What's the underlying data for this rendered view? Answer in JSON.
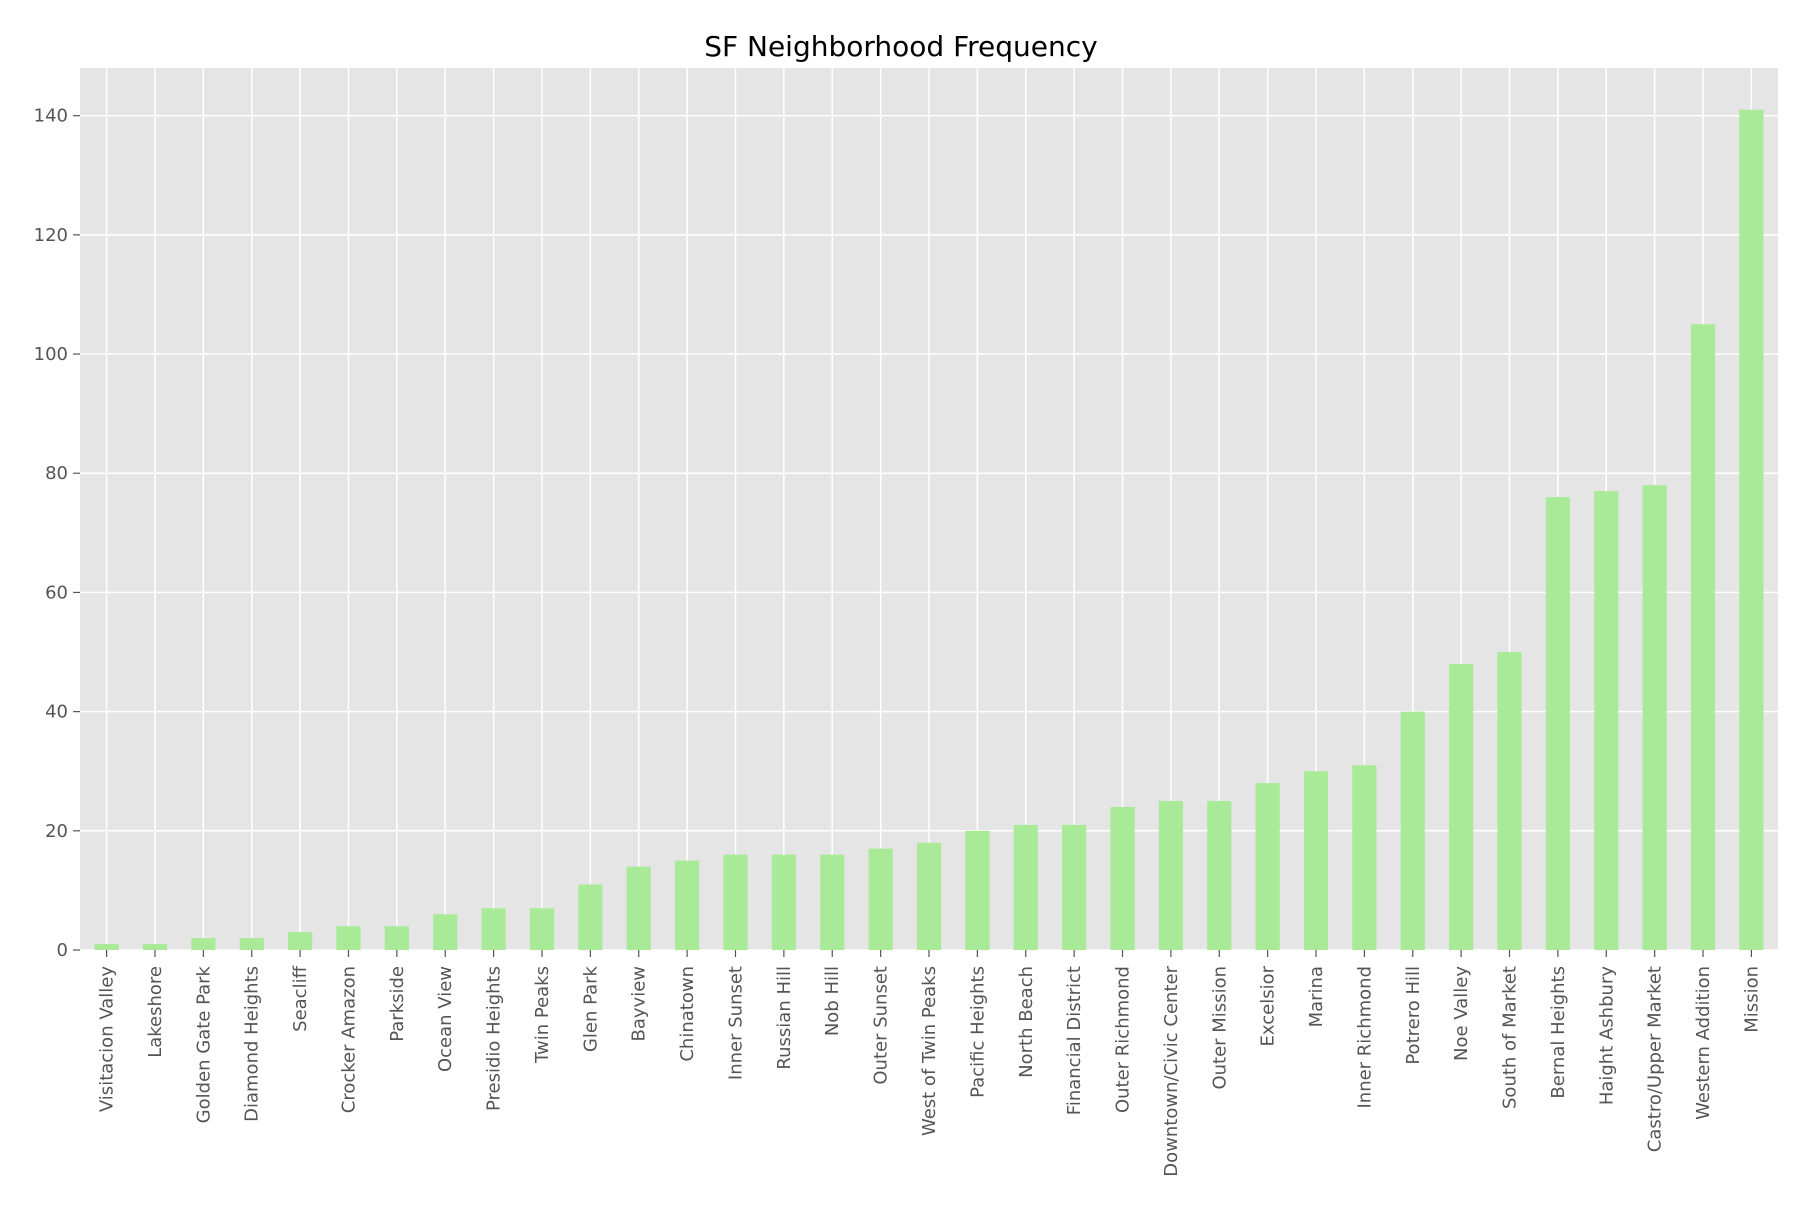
{
  "chart_data": {
    "type": "bar",
    "title": "SF Neighborhood Frequency",
    "xlabel": "",
    "ylabel": "",
    "categories": [
      "Visitacion Valley",
      "Lakeshore",
      "Golden Gate Park",
      "Diamond Heights",
      "Seacliff",
      "Crocker Amazon",
      "Parkside",
      "Ocean View",
      "Presidio Heights",
      "Twin Peaks",
      "Glen Park",
      "Bayview",
      "Chinatown",
      "Inner Sunset",
      "Russian Hill",
      "Nob Hill",
      "Outer Sunset",
      "West of Twin Peaks",
      "Pacific Heights",
      "North Beach",
      "Financial District",
      "Outer Richmond",
      "Downtown/Civic Center",
      "Outer Mission",
      "Excelsior",
      "Marina",
      "Inner Richmond",
      "Potrero Hill",
      "Noe Valley",
      "South of Market",
      "Bernal Heights",
      "Haight Ashbury",
      "Castro/Upper Market",
      "Western Addition",
      "Mission"
    ],
    "values": [
      1,
      1,
      2,
      2,
      3,
      4,
      4,
      6,
      7,
      7,
      11,
      14,
      15,
      16,
      16,
      16,
      17,
      18,
      20,
      21,
      21,
      24,
      25,
      25,
      28,
      30,
      31,
      40,
      48,
      50,
      76,
      77,
      78,
      105,
      141
    ],
    "ylim": [
      0,
      148
    ],
    "yticks": [
      0,
      20,
      40,
      60,
      80,
      100,
      120,
      140
    ],
    "grid": true,
    "legend": "none",
    "colors": {
      "bar": "#a8ea98",
      "plot_background": "#e5e5e5",
      "grid": "#ffffff",
      "tick_text": "#555555",
      "title_text": "#000000"
    }
  }
}
